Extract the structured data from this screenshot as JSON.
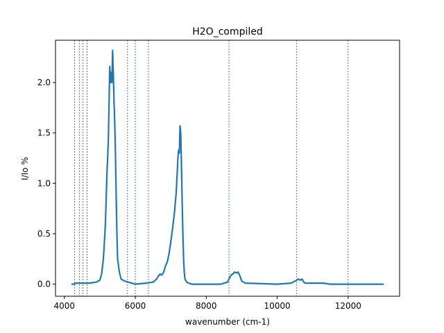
{
  "chart_data": {
    "type": "line",
    "title": "H2O_compiled",
    "xlabel": "wavenumber (cm-1)",
    "ylabel": "I/Io %",
    "xlim": [
      3750,
      13450
    ],
    "ylim": [
      -0.12,
      2.42
    ],
    "x_ticks": [
      4000,
      6000,
      8000,
      10000,
      12000
    ],
    "x_tick_labels": [
      "4000",
      "6000",
      "8000",
      "10000",
      "12000"
    ],
    "y_ticks": [
      0.0,
      0.5,
      1.0,
      1.5,
      2.0
    ],
    "y_tick_labels": [
      "0.0",
      "0.5",
      "1.0",
      "1.5",
      "2.0"
    ],
    "grid": false,
    "legend": "none",
    "line_color": "#1f77b4",
    "marker_line_color": "#008000",
    "vertical_markers": [
      4290,
      4420,
      4520,
      4640,
      5780,
      6000,
      6370,
      8640,
      10550,
      12000
    ],
    "series": [
      {
        "x": [
          4200,
          4290,
          4300,
          4500,
          4700,
          4900,
          5000,
          5050,
          5100,
          5150,
          5180,
          5200,
          5220,
          5240,
          5260,
          5280,
          5300,
          5320,
          5340,
          5360,
          5380,
          5400,
          5420,
          5440,
          5460,
          5480,
          5500,
          5550,
          5600,
          5700,
          6000,
          6300,
          6500,
          6600,
          6650,
          6700,
          6750,
          6800,
          6850,
          6900,
          6950,
          7000,
          7050,
          7100,
          7150,
          7180,
          7200,
          7220,
          7240,
          7260,
          7280,
          7300,
          7320,
          7340,
          7360,
          7380,
          7400,
          7450,
          7500,
          7600,
          8000,
          8400,
          8600,
          8650,
          8700,
          8750,
          8800,
          8850,
          8900,
          8950,
          9000,
          9100,
          10000,
          10400,
          10500,
          10550,
          10600,
          10650,
          10700,
          10750,
          10800,
          10900,
          11000,
          11300,
          11500,
          12000,
          13000
        ],
        "y": [
          0.0,
          0.0,
          0.01,
          0.01,
          0.01,
          0.02,
          0.04,
          0.1,
          0.25,
          0.55,
          0.85,
          1.1,
          1.25,
          1.45,
          1.8,
          2.16,
          2.0,
          2.1,
          2.0,
          2.32,
          2.1,
          1.8,
          1.6,
          1.3,
          0.9,
          0.5,
          0.25,
          0.12,
          0.05,
          0.03,
          0.0,
          0.01,
          0.02,
          0.05,
          0.08,
          0.1,
          0.09,
          0.12,
          0.18,
          0.22,
          0.3,
          0.42,
          0.55,
          0.7,
          0.9,
          1.1,
          1.25,
          1.33,
          1.3,
          1.57,
          1.5,
          1.2,
          0.85,
          0.5,
          0.25,
          0.12,
          0.05,
          0.02,
          0.01,
          0.0,
          0.0,
          0.0,
          0.02,
          0.06,
          0.09,
          0.1,
          0.12,
          0.11,
          0.12,
          0.08,
          0.03,
          0.01,
          0.0,
          0.01,
          0.03,
          0.04,
          0.05,
          0.04,
          0.05,
          0.02,
          0.01,
          0.01,
          0.01,
          0.01,
          0.0,
          0.0,
          0.0
        ]
      }
    ]
  }
}
